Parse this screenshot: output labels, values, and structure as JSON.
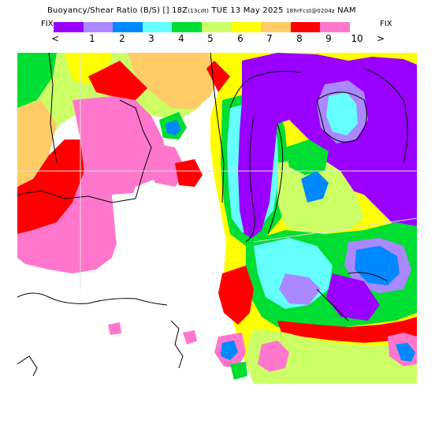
{
  "header": {
    "title_main": "Buoyancy/Shear Ratio (B/S)  [] 18Z",
    "title_tz": "(13cdt)",
    "title_date": " TUE 13 May 2025 ",
    "title_fcst": "18hrFcst@0204z",
    "title_model": " NAM"
  },
  "legend": {
    "fix_left": "FIX",
    "fix_right": "FIX",
    "prev_arrow": "<",
    "next_arrow": ">",
    "colors": [
      "#9900ff",
      "#aa88ff",
      "#0088ff",
      "#66ffff",
      "#00dd33",
      "#ccff66",
      "#ffff00",
      "#ffcc66",
      "#ff0000",
      "#ff77cc"
    ],
    "ticks": [
      "1",
      "2",
      "3",
      "4",
      "5",
      "6",
      "7",
      "8",
      "9",
      "10"
    ]
  },
  "map": {
    "description_colors": {
      "purple": "#9900ff",
      "lavender": "#aa88ff",
      "blue": "#0088ff",
      "cyan": "#66ffff",
      "green": "#00dd33",
      "lightgreen": "#ccff66",
      "yellow": "#ffff00",
      "tan": "#ffcc66",
      "red": "#ff0000",
      "pink": "#ff77cc"
    }
  }
}
